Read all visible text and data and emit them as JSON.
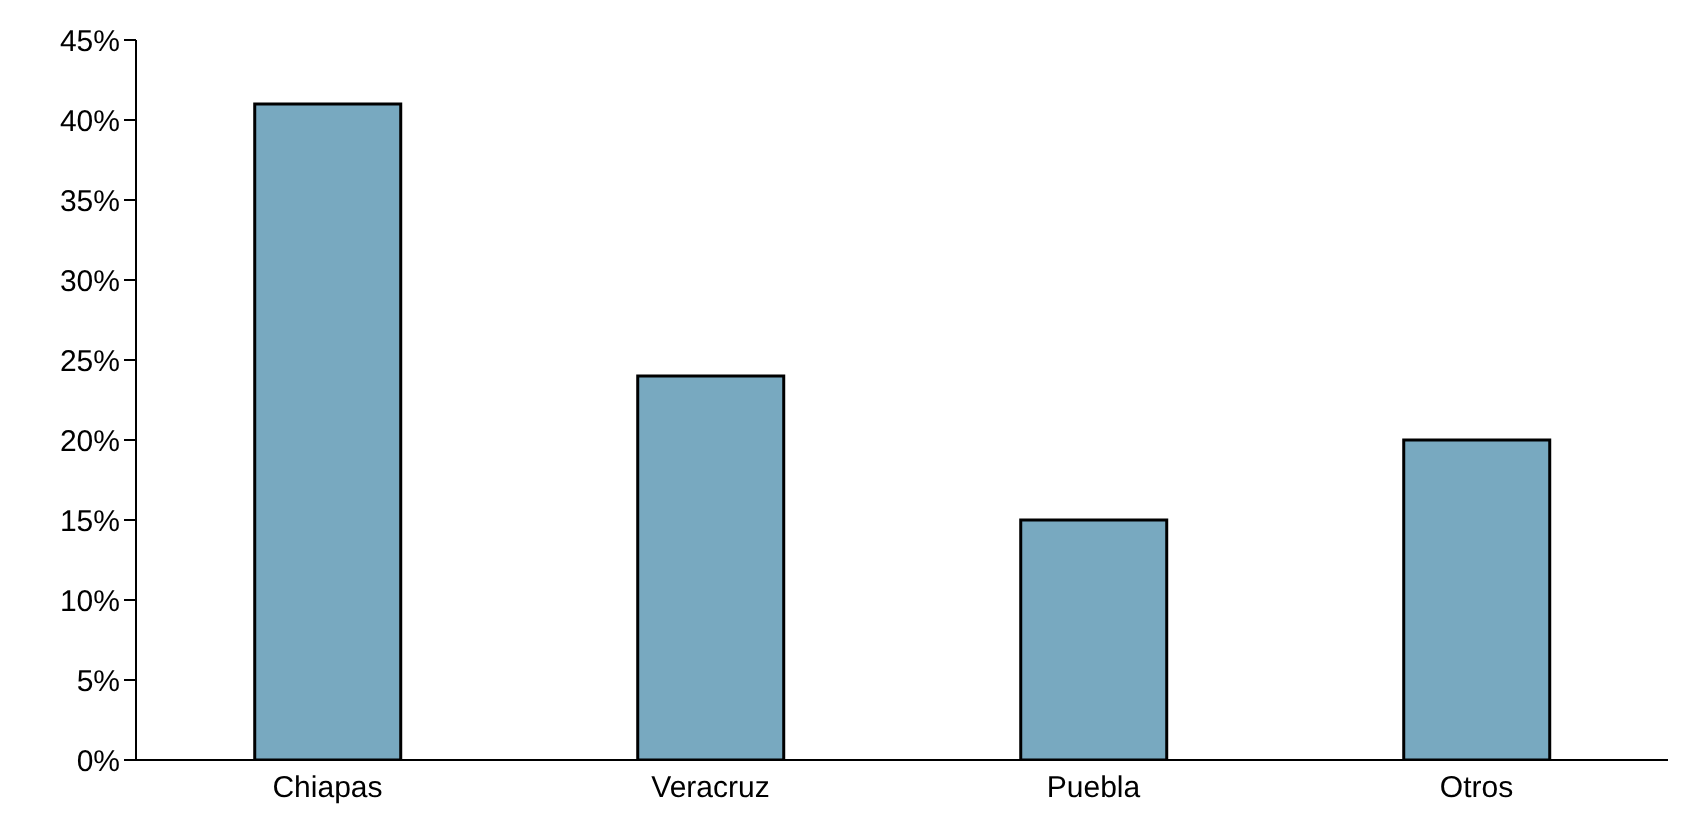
{
  "chart_data": {
    "type": "bar",
    "categories": [
      "Chiapas",
      "Veracruz",
      "Puebla",
      "Otros"
    ],
    "values": [
      41,
      24,
      15,
      20
    ],
    "color": "#78a9c0",
    "ylim": [
      0,
      45
    ],
    "yticks": [
      {
        "value": 0,
        "label": "0%"
      },
      {
        "value": 5,
        "label": "5%"
      },
      {
        "value": 10,
        "label": "10%"
      },
      {
        "value": 15,
        "label": "15%"
      },
      {
        "value": 20,
        "label": "20%"
      },
      {
        "value": 25,
        "label": "25%"
      },
      {
        "value": 30,
        "label": "30%"
      },
      {
        "value": 35,
        "label": "35%"
      },
      {
        "value": 40,
        "label": "40%"
      },
      {
        "value": 45,
        "label": "45%"
      }
    ],
    "grid": false
  }
}
